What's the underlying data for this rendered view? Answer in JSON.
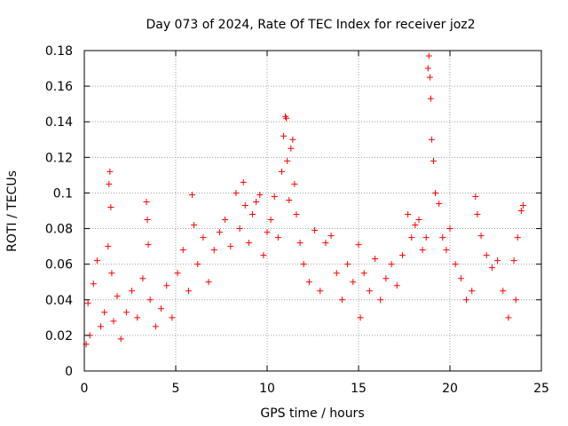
{
  "chart_data": {
    "type": "scatter",
    "title": "Day 073 of 2024, Rate Of TEC Index for receiver joz2",
    "xlabel": "GPS time / hours",
    "ylabel": "ROTI / TECUs",
    "xlim": [
      0,
      25
    ],
    "ylim": [
      0,
      0.18
    ],
    "x_ticks": [
      0,
      5,
      10,
      15,
      20,
      25
    ],
    "y_ticks": [
      0,
      0.02,
      0.04,
      0.06,
      0.08,
      0.1,
      0.12,
      0.14,
      0.16,
      0.18
    ],
    "x_tick_labels": [
      "0",
      "5",
      "10",
      "15",
      "20",
      "25"
    ],
    "y_tick_labels": [
      "0",
      "0.02",
      "0.04",
      "0.06",
      "0.08",
      "0.1",
      "0.12",
      "0.14",
      "0.16",
      "0.18"
    ],
    "grid": true,
    "marker": "+",
    "color": "#ff0000",
    "series": [
      {
        "name": "ROTI",
        "x": [
          0.1,
          0.2,
          0.3,
          0.5,
          0.7,
          0.9,
          1.1,
          1.3,
          1.35,
          1.4,
          1.45,
          1.5,
          1.6,
          1.8,
          2.0,
          2.3,
          2.6,
          2.9,
          3.2,
          3.4,
          3.45,
          3.5,
          3.6,
          3.9,
          4.2,
          4.5,
          4.8,
          5.1,
          5.4,
          5.7,
          5.9,
          6.0,
          6.2,
          6.5,
          6.8,
          7.1,
          7.4,
          7.7,
          8.0,
          8.3,
          8.5,
          8.7,
          8.8,
          9.0,
          9.2,
          9.4,
          9.6,
          9.8,
          10.0,
          10.2,
          10.4,
          10.6,
          10.8,
          10.9,
          11.0,
          11.05,
          11.1,
          11.2,
          11.3,
          11.4,
          11.5,
          11.6,
          11.8,
          12.0,
          12.3,
          12.6,
          12.9,
          13.2,
          13.5,
          13.8,
          14.1,
          14.4,
          14.7,
          15.0,
          15.1,
          15.3,
          15.6,
          15.9,
          16.2,
          16.5,
          16.8,
          17.1,
          17.4,
          17.7,
          17.9,
          18.1,
          18.3,
          18.5,
          18.7,
          18.8,
          18.85,
          18.9,
          18.95,
          19.0,
          19.1,
          19.2,
          19.4,
          19.6,
          19.8,
          20.0,
          20.3,
          20.6,
          20.9,
          21.2,
          21.4,
          21.5,
          21.7,
          22.0,
          22.3,
          22.6,
          22.9,
          23.2,
          23.5,
          23.6,
          23.7,
          23.9,
          24.0
        ],
        "y": [
          0.015,
          0.038,
          0.02,
          0.049,
          0.062,
          0.025,
          0.033,
          0.07,
          0.105,
          0.112,
          0.092,
          0.055,
          0.028,
          0.042,
          0.018,
          0.033,
          0.045,
          0.03,
          0.052,
          0.095,
          0.085,
          0.071,
          0.04,
          0.025,
          0.035,
          0.048,
          0.03,
          0.055,
          0.068,
          0.045,
          0.099,
          0.082,
          0.06,
          0.075,
          0.05,
          0.068,
          0.078,
          0.085,
          0.07,
          0.1,
          0.08,
          0.106,
          0.093,
          0.072,
          0.088,
          0.095,
          0.099,
          0.065,
          0.078,
          0.085,
          0.098,
          0.075,
          0.112,
          0.132,
          0.143,
          0.142,
          0.118,
          0.096,
          0.125,
          0.13,
          0.105,
          0.088,
          0.072,
          0.06,
          0.05,
          0.079,
          0.045,
          0.072,
          0.076,
          0.055,
          0.04,
          0.06,
          0.05,
          0.071,
          0.03,
          0.055,
          0.045,
          0.063,
          0.04,
          0.052,
          0.06,
          0.048,
          0.065,
          0.088,
          0.075,
          0.082,
          0.085,
          0.068,
          0.075,
          0.17,
          0.177,
          0.165,
          0.153,
          0.13,
          0.118,
          0.1,
          0.094,
          0.075,
          0.068,
          0.08,
          0.06,
          0.052,
          0.04,
          0.045,
          0.098,
          0.088,
          0.076,
          0.065,
          0.058,
          0.062,
          0.045,
          0.03,
          0.062,
          0.04,
          0.075,
          0.09,
          0.093
        ]
      }
    ]
  }
}
